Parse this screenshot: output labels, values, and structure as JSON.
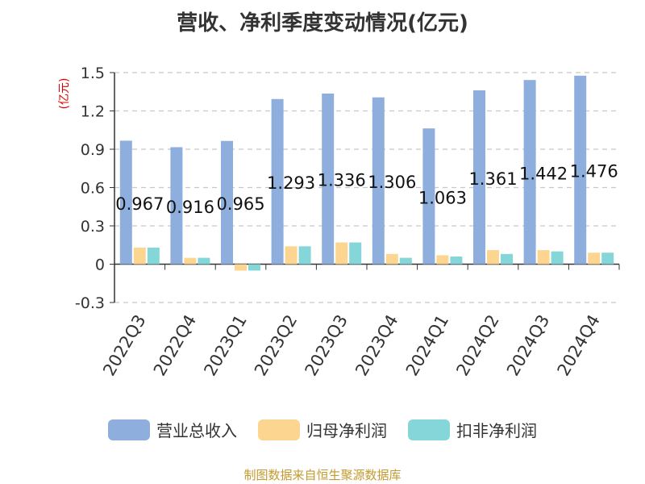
{
  "title": "营收、净利季度变动情况(亿元)",
  "source": "制图数据来自恒生聚源数据库",
  "colors": {
    "revenue": "#8eaedd",
    "net_profit": "#fcd691",
    "deducted_profit": "#84d6d8",
    "unit_label": "#e00000"
  },
  "chart_data": {
    "type": "bar",
    "title": "营收、净利季度变动情况(亿元)",
    "ylabel": "(亿元)",
    "ylim": [
      -0.3,
      1.5
    ],
    "yticks": [
      -0.3,
      0,
      0.3,
      0.6,
      0.9,
      1.2,
      1.5
    ],
    "ytick_labels": [
      "-0.3",
      "0",
      "0.3",
      "0.6",
      "0.9",
      "1.2",
      "1.5"
    ],
    "grid": true,
    "legend_position": "bottom",
    "categories": [
      "2022Q3",
      "2022Q4",
      "2023Q1",
      "2023Q2",
      "2023Q3",
      "2023Q4",
      "2024Q1",
      "2024Q2",
      "2024Q3",
      "2024Q4"
    ],
    "series": [
      {
        "name": "营业总收入",
        "values": [
          0.967,
          0.916,
          0.965,
          1.293,
          1.336,
          1.306,
          1.063,
          1.361,
          1.442,
          1.476
        ],
        "labels": [
          "0.967",
          "0.916",
          "0.965",
          "1.293",
          "1.336",
          "1.306",
          "1.063",
          "1.361",
          "1.442",
          "1.476"
        ]
      },
      {
        "name": "归母净利润",
        "values": [
          0.13,
          0.05,
          -0.05,
          0.14,
          0.17,
          0.08,
          0.07,
          0.11,
          0.11,
          0.09
        ]
      },
      {
        "name": "扣非净利润",
        "values": [
          0.13,
          0.05,
          -0.05,
          0.14,
          0.17,
          0.05,
          0.06,
          0.08,
          0.1,
          0.09
        ]
      }
    ]
  }
}
